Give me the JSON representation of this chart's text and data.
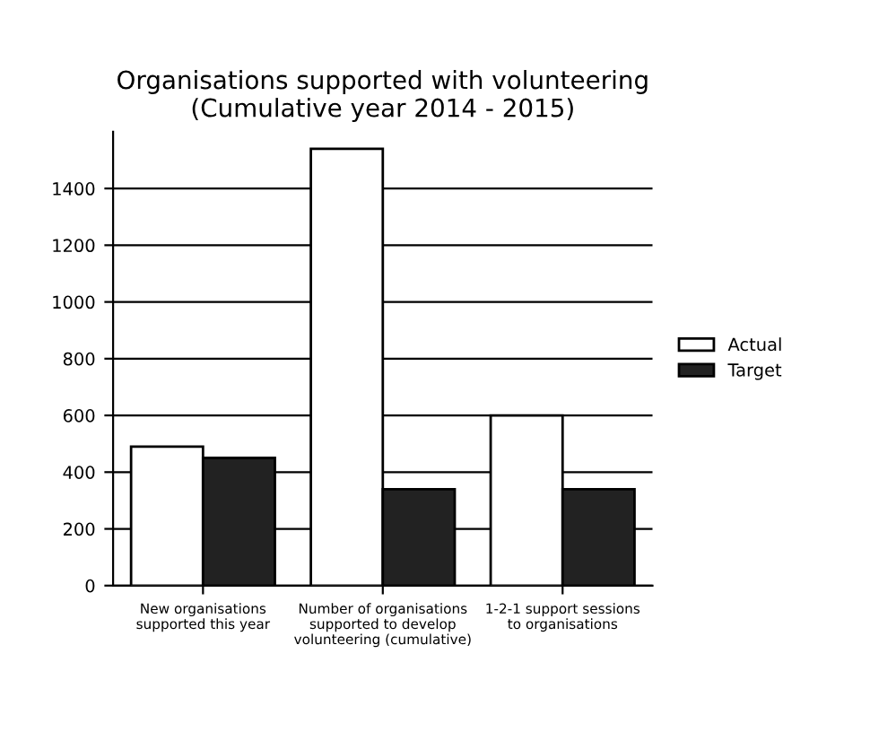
{
  "chart_data": {
    "type": "bar",
    "title": "Organisations supported with volunteering\n(Cumulative year 2014 - 2015)",
    "categories": [
      "New organisations\nsupported this year",
      "Number of organisations\nsupported to develop\nvolunteering (cumulative)",
      "1-2-1 support sessions\nto organisations"
    ],
    "series": [
      {
        "name": "Actual",
        "color": "#ffffff",
        "values": [
          490,
          1540,
          600
        ]
      },
      {
        "name": "Target",
        "color": "#222222",
        "values": [
          450,
          340,
          340
        ]
      }
    ],
    "ylim": [
      0,
      1600
    ],
    "yticks": [
      0,
      200,
      400,
      600,
      800,
      1000,
      1200,
      1400
    ],
    "grid": "y",
    "legend": "right"
  }
}
